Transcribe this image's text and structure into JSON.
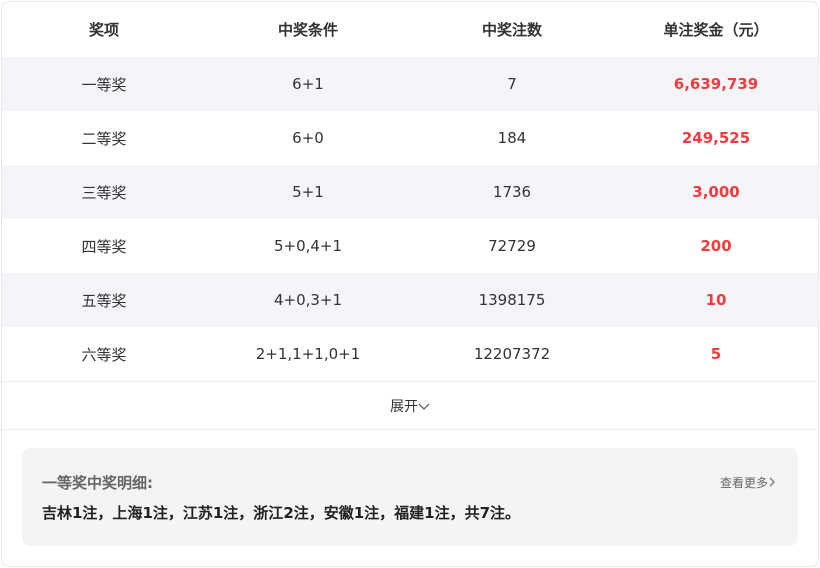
{
  "headers": [
    "奖项",
    "中奖条件",
    "中奖注数",
    "单注奖金（元）"
  ],
  "rows": [
    {
      "level": "一等奖",
      "condition": "6+1",
      "count": "7",
      "prize": "6,639,739"
    },
    {
      "level": "二等奖",
      "condition": "6+0",
      "count": "184",
      "prize": "249,525"
    },
    {
      "level": "三等奖",
      "condition": "5+1",
      "count": "1736",
      "prize": "3,000"
    },
    {
      "level": "四等奖",
      "condition": "5+0,4+1",
      "count": "72729",
      "prize": "200"
    },
    {
      "level": "五等奖",
      "condition": "4+0,3+1",
      "count": "1398175",
      "prize": "10"
    },
    {
      "level": "六等奖",
      "condition": "2+1,1+1,0+1",
      "count": "12207372",
      "prize": "5"
    }
  ],
  "expand_label": "展开",
  "detail": {
    "title": "一等奖中奖明细:",
    "more_label": "查看更多",
    "text": "吉林1注，上海1注，江苏1注，浙江2注，安徽1注，福建1注，共7注。"
  },
  "colors": {
    "prize": "#f03c3c",
    "alt_row": "#f5f5f9"
  }
}
